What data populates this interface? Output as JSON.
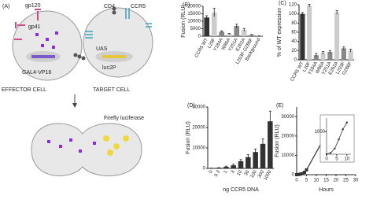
{
  "diagram": {
    "label": "(A)",
    "gp120": "gp120",
    "gp41": "gp41",
    "cd4": "CD4",
    "ccr5": "CCR5",
    "uas": "UAS",
    "luc2p": "luc2P",
    "gal4": "GAL4-VP16",
    "effector": "EFFECTOR CELL",
    "target": "TARGET CELL",
    "luciferase": "Firefly luciferase"
  },
  "chart_data": [
    {
      "type": "bar",
      "label": "(B)",
      "y_label": "Fusion (RLU)",
      "categories": [
        "CCR5 WT",
        "L20F",
        "Y184A",
        "W86A",
        "Y251A",
        "E262A",
        "L203F G286F",
        "Background"
      ],
      "values": [
        12500,
        15800,
        3000,
        1500,
        6800,
        4200,
        800,
        200
      ],
      "errors": [
        1200,
        2800,
        600,
        400,
        1200,
        900,
        300,
        100
      ],
      "colors": [
        "#333333",
        "#cccccc",
        "#888888",
        "#cccccc",
        "#888888",
        "#cccccc",
        "#888888",
        "#cccccc"
      ],
      "ylim": [
        0,
        20000
      ],
      "yticks": [
        0,
        5000,
        10000,
        15000,
        20000
      ]
    },
    {
      "type": "bar",
      "label": "(C)",
      "y_label": "% of WT expression",
      "categories": [
        "CCR5 WT",
        "L20F",
        "Y184A",
        "W86A",
        "Y251A",
        "E262A",
        "L203F",
        "G286F"
      ],
      "values": [
        100,
        118,
        10,
        15,
        17,
        103,
        25,
        20
      ],
      "errors": [
        3,
        3,
        4,
        3,
        3,
        4,
        3,
        3
      ],
      "colors": [
        "#333333",
        "#cccccc",
        "#888888",
        "#cccccc",
        "#888888",
        "#cccccc",
        "#888888",
        "#cccccc"
      ],
      "ylim": [
        0,
        120
      ],
      "yticks": [
        0,
        20,
        40,
        60,
        80,
        100,
        120
      ]
    },
    {
      "type": "bar",
      "label": "(D)",
      "y_label": "Fusion (RLU)",
      "x_label": "ng CCR5 DNA",
      "categories": [
        "0",
        "0.3",
        "1",
        "3",
        "10",
        "30",
        "100",
        "300",
        "1000"
      ],
      "values": [
        100,
        300,
        800,
        1500,
        3500,
        5500,
        8000,
        12000,
        23000
      ],
      "errors": [
        50,
        100,
        300,
        500,
        800,
        1200,
        1500,
        2500,
        5000
      ],
      "colors": [
        "#333333",
        "#333333",
        "#333333",
        "#333333",
        "#333333",
        "#333333",
        "#333333",
        "#333333",
        "#333333"
      ],
      "ylim": [
        0,
        30000
      ],
      "yticks": [
        0,
        10000,
        20000,
        30000
      ]
    },
    {
      "type": "line",
      "label": "(E)",
      "y_label": "Fusion (RLU)",
      "x_label": "Hours",
      "x": [
        0,
        1,
        2,
        3,
        4,
        5,
        20,
        22,
        27
      ],
      "series": [
        {
          "color": "#333333",
          "values": [
            0,
            100,
            300,
            600,
            1200,
            2500,
            30000,
            25000,
            22000
          ]
        }
      ],
      "xlim": [
        0,
        30
      ],
      "xticks": [
        0,
        5,
        10,
        15,
        20,
        25,
        30
      ],
      "ylim": [
        0,
        35000
      ],
      "yticks": [
        0,
        10000,
        20000,
        30000
      ],
      "inset": {
        "x": [
          0,
          2,
          4,
          6,
          8,
          10
        ],
        "values": [
          0,
          60,
          250,
          650,
          1100,
          1400
        ],
        "xlim": [
          0,
          12
        ],
        "ylim": [
          0,
          1600
        ],
        "xticks": [
          0,
          5,
          10
        ],
        "yticks": [
          1000
        ]
      }
    }
  ]
}
